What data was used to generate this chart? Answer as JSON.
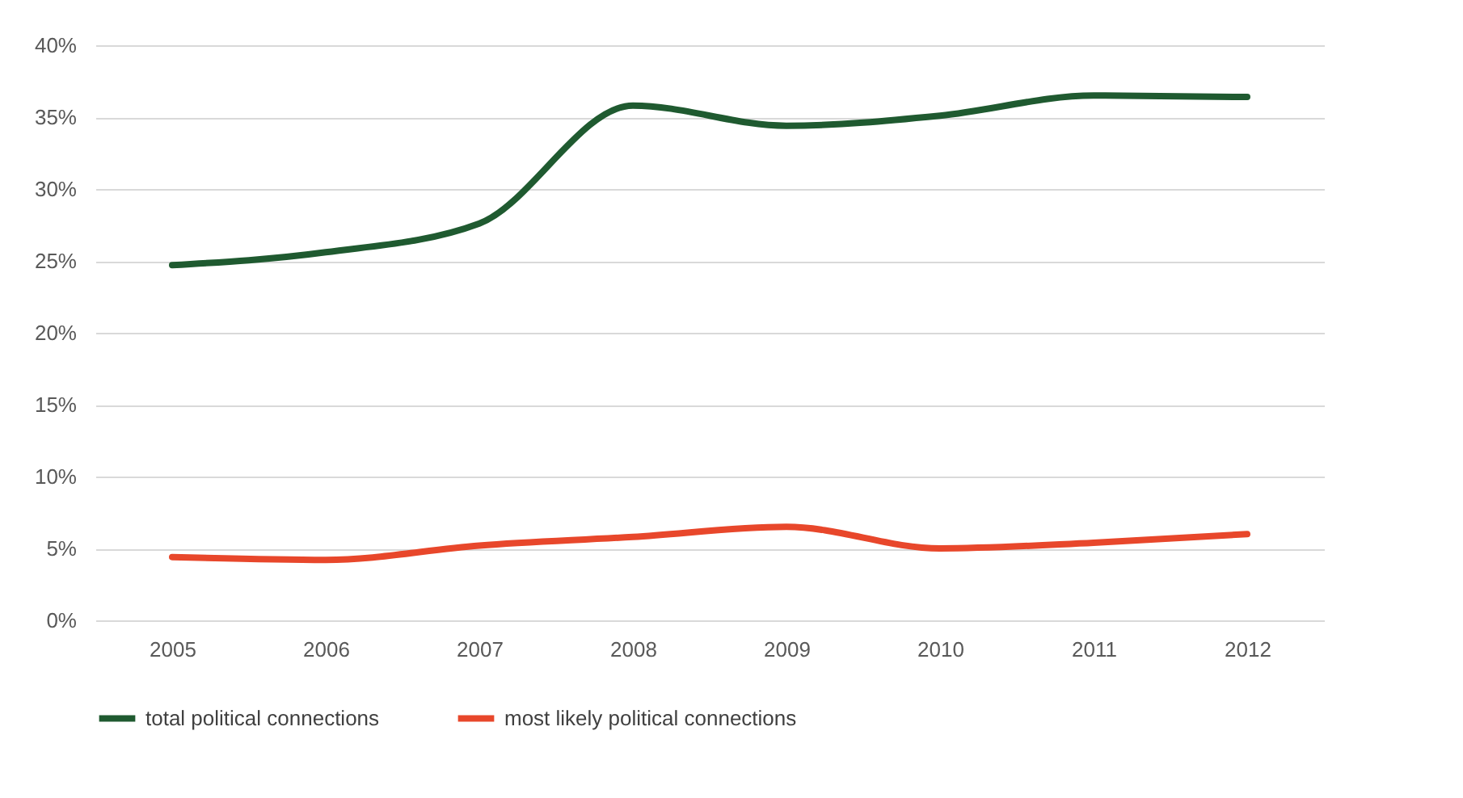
{
  "chart_data": {
    "type": "line",
    "categories": [
      "2005",
      "2006",
      "2007",
      "2008",
      "2009",
      "2010",
      "2011",
      "2012"
    ],
    "series": [
      {
        "name": "total political connections",
        "color": "#1f5a30",
        "values": [
          24.7,
          25.6,
          27.6,
          35.8,
          34.4,
          35.1,
          36.5,
          36.4
        ]
      },
      {
        "name": "most likely political connections",
        "color": "#e8472b",
        "values": [
          4.4,
          4.2,
          5.2,
          5.8,
          6.5,
          5.0,
          5.4,
          6.0
        ]
      }
    ],
    "ylim": [
      0,
      40
    ],
    "yticks": [
      {
        "value": 0,
        "label": "0%"
      },
      {
        "value": 5,
        "label": "5%"
      },
      {
        "value": 10,
        "label": "10%"
      },
      {
        "value": 15,
        "label": "15%"
      },
      {
        "value": 20,
        "label": "20%"
      },
      {
        "value": 25,
        "label": "25%"
      },
      {
        "value": 30,
        "label": "30%"
      },
      {
        "value": 35,
        "label": "35%"
      },
      {
        "value": 40,
        "label": "40%"
      }
    ],
    "grid": "y",
    "legend": "bottom",
    "marker": "none",
    "line_style": "solid"
  }
}
